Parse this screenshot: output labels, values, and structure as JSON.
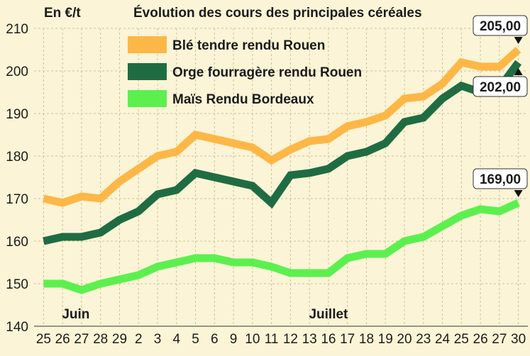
{
  "header": {
    "unit": "En €/t",
    "title": "Évolution des cours des principales céréales"
  },
  "chart_data": {
    "type": "line",
    "title": "Évolution des cours des principales céréales",
    "ylabel": "En €/t",
    "xlabel": "",
    "ylim": [
      140,
      210
    ],
    "yticks": [
      140,
      150,
      160,
      170,
      180,
      190,
      200,
      210
    ],
    "grid": true,
    "legend_position": "top-left",
    "categories": [
      "25",
      "26",
      "27",
      "28",
      "29",
      "2",
      "3",
      "4",
      "5",
      "6",
      "9",
      "10",
      "11",
      "12",
      "13",
      "16",
      "17",
      "18",
      "19",
      "20",
      "23",
      "24",
      "25",
      "26",
      "27",
      "30"
    ],
    "month_labels": [
      {
        "label": "Juin",
        "at_index": 1.7
      },
      {
        "label": "Juillet",
        "at_index": 15.0
      }
    ],
    "series": [
      {
        "name": "Blé tendre rendu Rouen",
        "color": "#fdb746",
        "values": [
          170,
          169,
          170.5,
          170,
          174,
          177,
          180,
          181,
          185,
          184,
          183,
          182,
          179,
          181.5,
          183.5,
          184,
          187,
          188,
          189.5,
          193.5,
          194,
          197,
          202,
          201,
          201,
          205
        ]
      },
      {
        "name": "Orge fourragère rendu Rouen",
        "color": "#1f6c43",
        "values": [
          160,
          161,
          161,
          162,
          165,
          167,
          171,
          172,
          176,
          175,
          174,
          173,
          169,
          175.5,
          176,
          177,
          180,
          181,
          183,
          188,
          189,
          193.5,
          196.5,
          195,
          196,
          202
        ]
      },
      {
        "name": "Maïs Rendu Bordeaux",
        "color": "#5cf04f",
        "values": [
          150,
          150,
          148.5,
          150,
          151,
          152,
          154,
          155,
          156,
          156,
          155,
          155,
          154,
          152.5,
          152.5,
          152.5,
          156,
          157,
          157,
          160,
          161,
          163.5,
          166,
          167.5,
          167,
          169
        ]
      }
    ],
    "callouts": [
      {
        "text": "205,00",
        "series": 0
      },
      {
        "text": "202,00",
        "series": 1
      },
      {
        "text": "169,00",
        "series": 2
      }
    ]
  }
}
